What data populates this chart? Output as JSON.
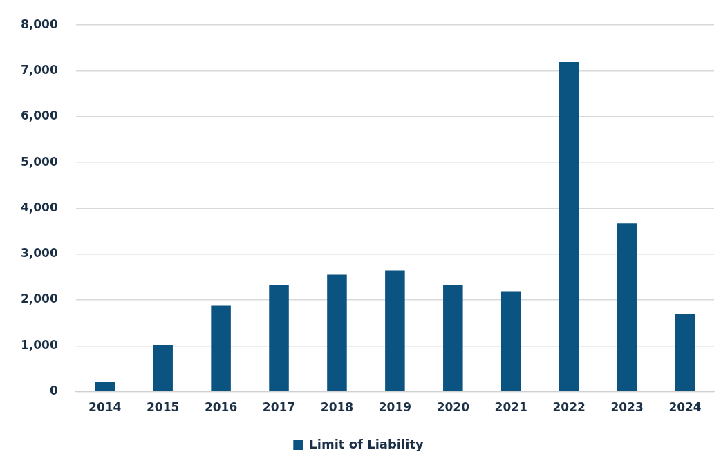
{
  "chart_data": {
    "type": "bar",
    "categories": [
      "2014",
      "2015",
      "2016",
      "2017",
      "2018",
      "2019",
      "2020",
      "2021",
      "2022",
      "2023",
      "2024"
    ],
    "series": [
      {
        "name": "Limit of Liability",
        "color": "#0b5380",
        "values": [
          220,
          1020,
          1870,
          2320,
          2550,
          2640,
          2320,
          2190,
          7190,
          3670,
          1700
        ]
      }
    ],
    "ylim": [
      0,
      8000
    ],
    "yticks": [
      {
        "value": 0,
        "label": "0"
      },
      {
        "value": 1000,
        "label": "1,000"
      },
      {
        "value": 2000,
        "label": "2,000"
      },
      {
        "value": 3000,
        "label": "3,000"
      },
      {
        "value": 4000,
        "label": "4,000"
      },
      {
        "value": 5000,
        "label": "5,000"
      },
      {
        "value": 6000,
        "label": "6,000"
      },
      {
        "value": 7000,
        "label": "7,000"
      },
      {
        "value": 8000,
        "label": "8,000"
      }
    ],
    "grid": "y",
    "legend": "bottom"
  }
}
